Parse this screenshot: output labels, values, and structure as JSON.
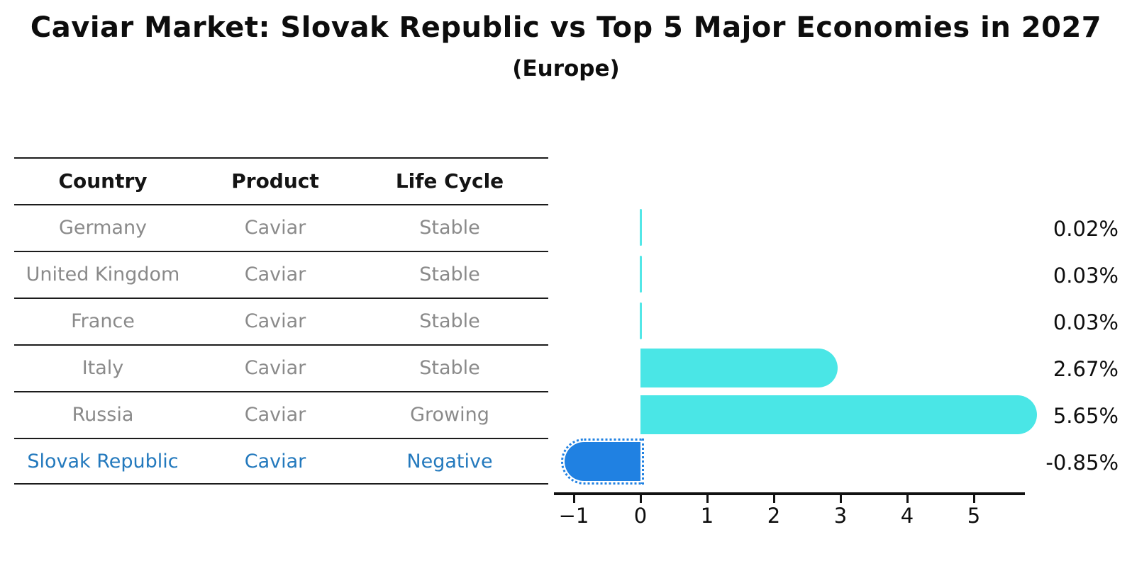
{
  "title": "Caviar Market: Slovak Republic vs Top 5 Major Economies in 2027",
  "subtitle": "(Europe)",
  "table": {
    "headers": [
      "Country",
      "Product",
      "Life Cycle"
    ],
    "rows": [
      {
        "country": "Germany",
        "product": "Caviar",
        "life_cycle": "Stable",
        "highlighted": false
      },
      {
        "country": "United Kingdom",
        "product": "Caviar",
        "life_cycle": "Stable",
        "highlighted": false
      },
      {
        "country": "France",
        "product": "Caviar",
        "life_cycle": "Stable",
        "highlighted": false
      },
      {
        "country": "Italy",
        "product": "Caviar",
        "life_cycle": "Stable",
        "highlighted": false
      },
      {
        "country": "Russia",
        "product": "Caviar",
        "life_cycle": "Growing",
        "highlighted": false
      },
      {
        "country": "Slovak Republic",
        "product": "Caviar",
        "life_cycle": "Negative",
        "highlighted": true
      }
    ]
  },
  "chart_data": {
    "type": "bar",
    "orientation": "horizontal",
    "categories": [
      "Germany",
      "United Kingdom",
      "France",
      "Italy",
      "Russia",
      "Slovak Republic"
    ],
    "values": [
      0.02,
      0.03,
      0.03,
      2.67,
      5.65,
      -0.85
    ],
    "value_labels": [
      "0.02%",
      "0.03%",
      "0.03%",
      "2.67%",
      "5.65%",
      "-0.85%"
    ],
    "x_ticks": [
      -1,
      0,
      1,
      2,
      3,
      4,
      5
    ],
    "x_tick_labels": [
      "−1",
      "0",
      "1",
      "2",
      "3",
      "4",
      "5"
    ],
    "xlim": [
      -1.3,
      5.75
    ],
    "grid": false,
    "legend": null,
    "xlabel": "",
    "ylabel": "",
    "colors": {
      "positive_bar": "#4ae6e6",
      "negative_bar": "#2081e2",
      "highlight_text": "#2379bd",
      "row_text": "#8a8a8a",
      "axis": "#111111"
    }
  }
}
